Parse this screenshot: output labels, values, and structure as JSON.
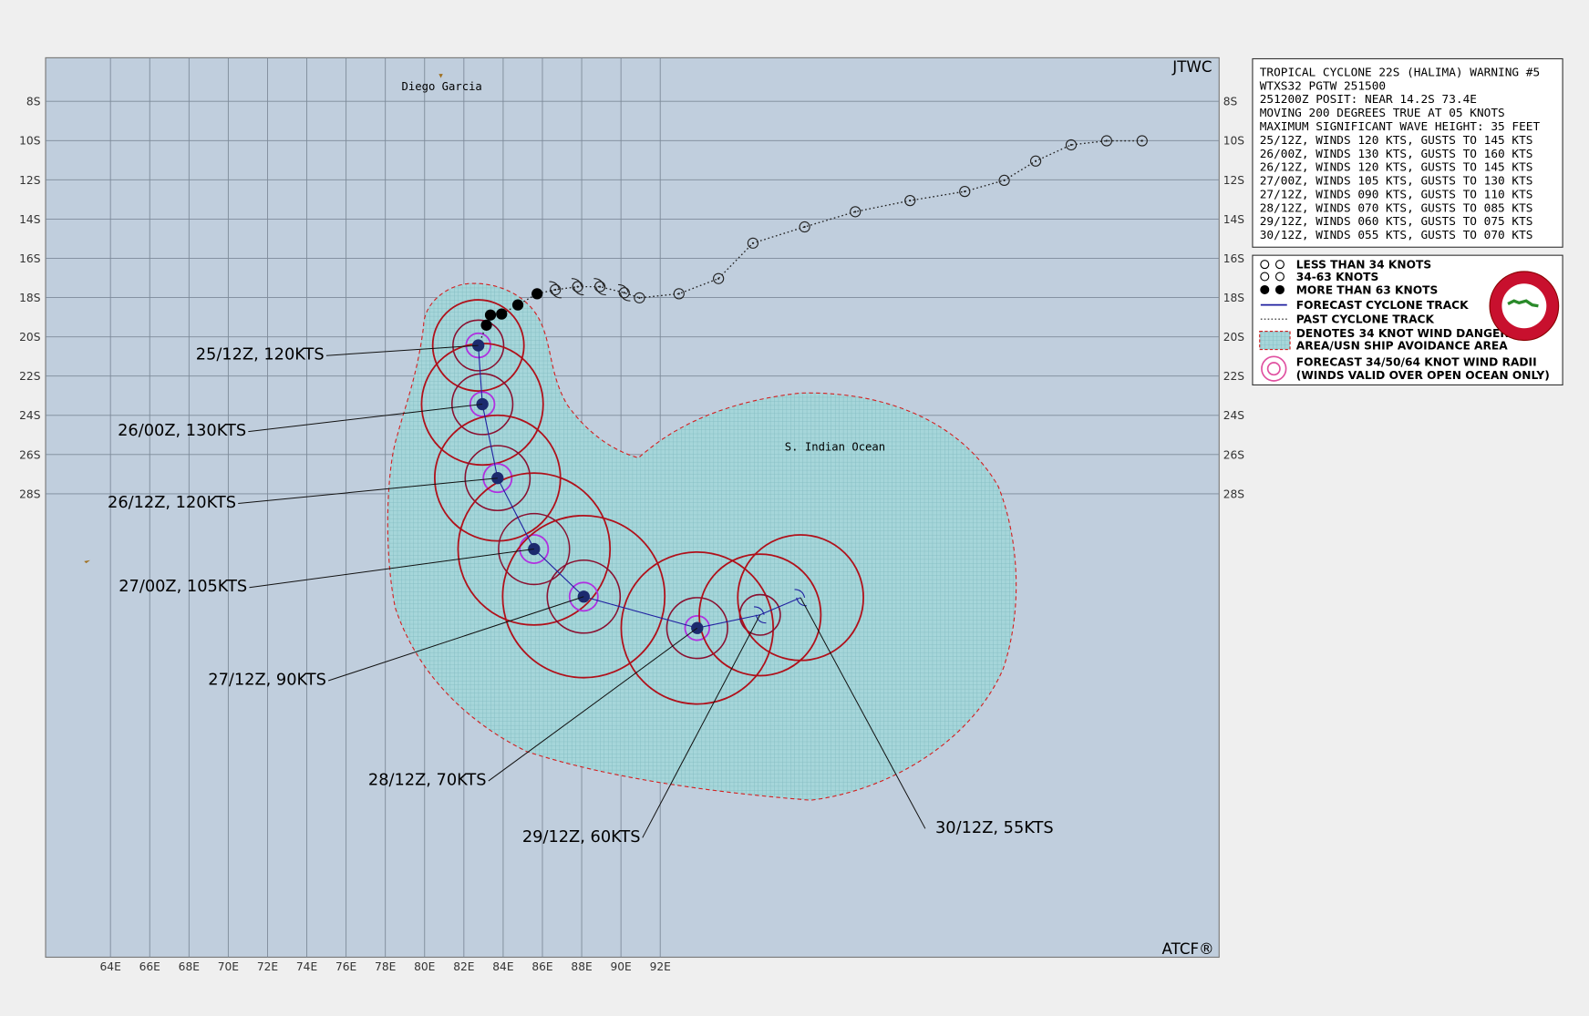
{
  "map": {
    "corner_top": "JTWC",
    "corner_bottom": "ATCF®",
    "places": [
      "Diego Garcia",
      "S. Indian Ocean"
    ],
    "lon_labels": [
      "64E",
      "66E",
      "68E",
      "70E",
      "72E",
      "74E",
      "76E",
      "78E",
      "80E",
      "82E",
      "84E",
      "86E",
      "88E",
      "90E",
      "92E"
    ],
    "lat_labels": [
      "8S",
      "10S",
      "12S",
      "14S",
      "16S",
      "18S",
      "20S",
      "22S",
      "24S",
      "26S",
      "28S"
    ],
    "forecast_labels": [
      "25/12Z, 120KTS",
      "26/00Z, 130KTS",
      "26/12Z, 120KTS",
      "27/00Z, 105KTS",
      "27/12Z,  90KTS",
      "28/12Z,  70KTS",
      "29/12Z,  60KTS",
      "30/12Z,  55KTS"
    ]
  },
  "warning": {
    "lines": [
      "TROPICAL CYCLONE 22S (HALIMA) WARNING #5",
      "WTXS32 PGTW 251500",
      "251200Z POSIT: NEAR 14.2S 73.4E",
      "MOVING 200 DEGREES TRUE AT 05 KNOTS",
      "MAXIMUM SIGNIFICANT WAVE HEIGHT: 35 FEET",
      "25/12Z, WINDS 120 KTS, GUSTS TO 145 KTS",
      "26/00Z, WINDS 130 KTS, GUSTS TO 160 KTS",
      "26/12Z, WINDS 120 KTS, GUSTS TO 145 KTS",
      "27/00Z, WINDS 105 KTS, GUSTS TO 130 KTS",
      "27/12Z, WINDS 090 KTS, GUSTS TO 110 KTS",
      "28/12Z, WINDS 070 KTS, GUSTS TO 085 KTS",
      "29/12Z, WINDS 060 KTS, GUSTS TO 075 KTS",
      "30/12Z, WINDS 055 KTS, GUSTS TO 070 KTS"
    ]
  },
  "legend": {
    "items": [
      "LESS THAN 34 KNOTS",
      "34-63 KNOTS",
      "MORE THAN 63 KNOTS",
      "FORECAST CYCLONE TRACK",
      "PAST CYCLONE TRACK",
      "DENOTES 34 KNOT WIND DANGER",
      "AREA/USN SHIP AVOIDANCE AREA",
      "FORECAST 34/50/64 KNOT WIND RADII",
      "(WINDS VALID OVER OPEN OCEAN ONLY)"
    ]
  }
}
